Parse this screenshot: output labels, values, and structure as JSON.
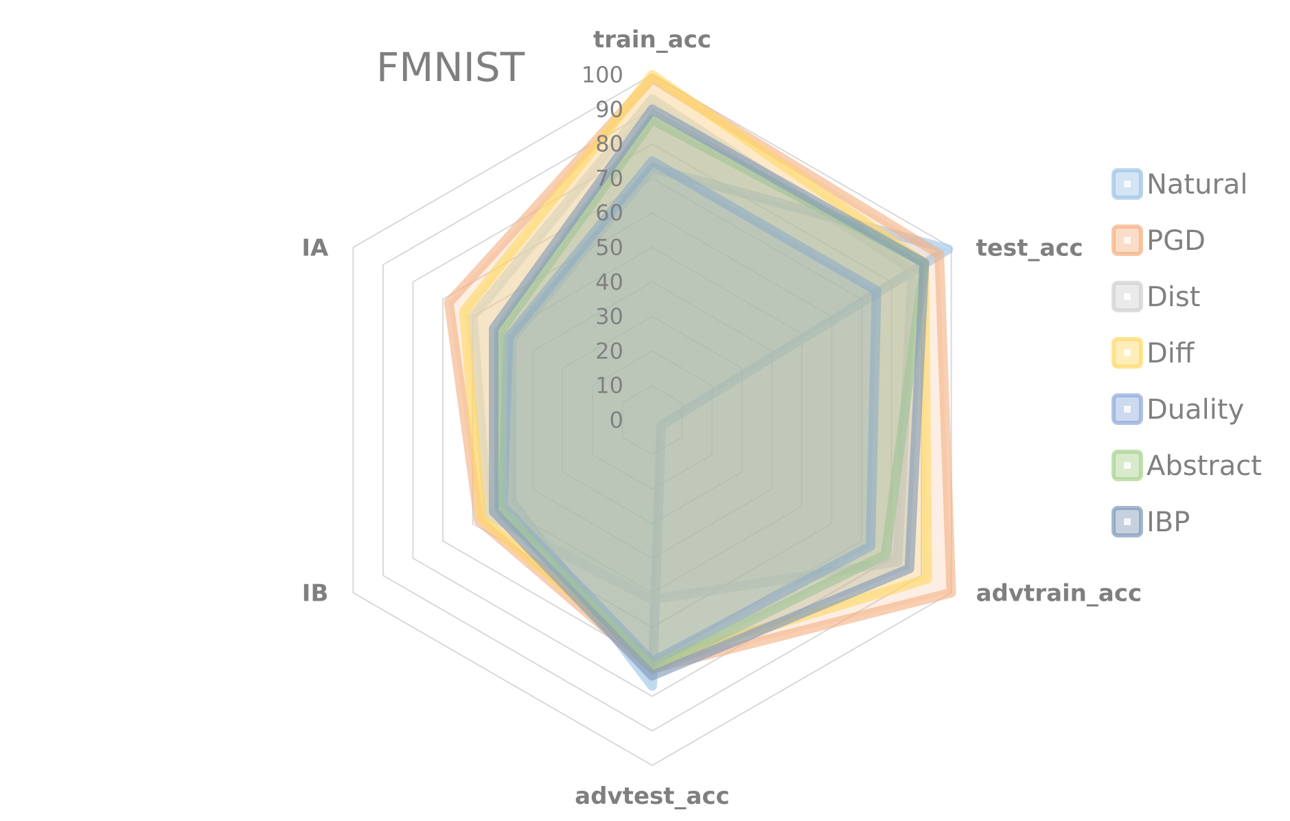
{
  "chart_data": {
    "type": "radar",
    "title": "FMNIST",
    "axes": [
      "train_acc",
      "test_acc",
      "advtrain_acc",
      "advtest_acc",
      "IB",
      "IA"
    ],
    "r_ticks": [
      0,
      10,
      20,
      30,
      40,
      50,
      60,
      70,
      80,
      90,
      100
    ],
    "r_range": [
      0,
      100
    ],
    "grid": true,
    "legend_position": "right",
    "series": [
      {
        "name": "Natural",
        "color": "#9dc3e6",
        "values": [
          73,
          99,
          3,
          77,
          47,
          47
        ]
      },
      {
        "name": "PGD",
        "color": "#f4b183",
        "values": [
          99,
          96,
          100,
          72,
          58,
          68
        ]
      },
      {
        "name": "Dist",
        "color": "#d0d0d0",
        "values": [
          93,
          87,
          82,
          52,
          55,
          60
        ]
      },
      {
        "name": "Diff",
        "color": "#ffd966",
        "values": [
          100,
          91,
          92,
          70,
          57,
          63
        ]
      },
      {
        "name": "Duality",
        "color": "#8faadc",
        "values": [
          75,
          75,
          73,
          70,
          50,
          48
        ]
      },
      {
        "name": "Abstract",
        "color": "#a9d18e",
        "values": [
          87,
          91,
          78,
          72,
          51,
          51
        ]
      },
      {
        "name": "IBP",
        "color": "#7f9ab8",
        "values": [
          90,
          91,
          86,
          74,
          53,
          53
        ]
      }
    ]
  }
}
